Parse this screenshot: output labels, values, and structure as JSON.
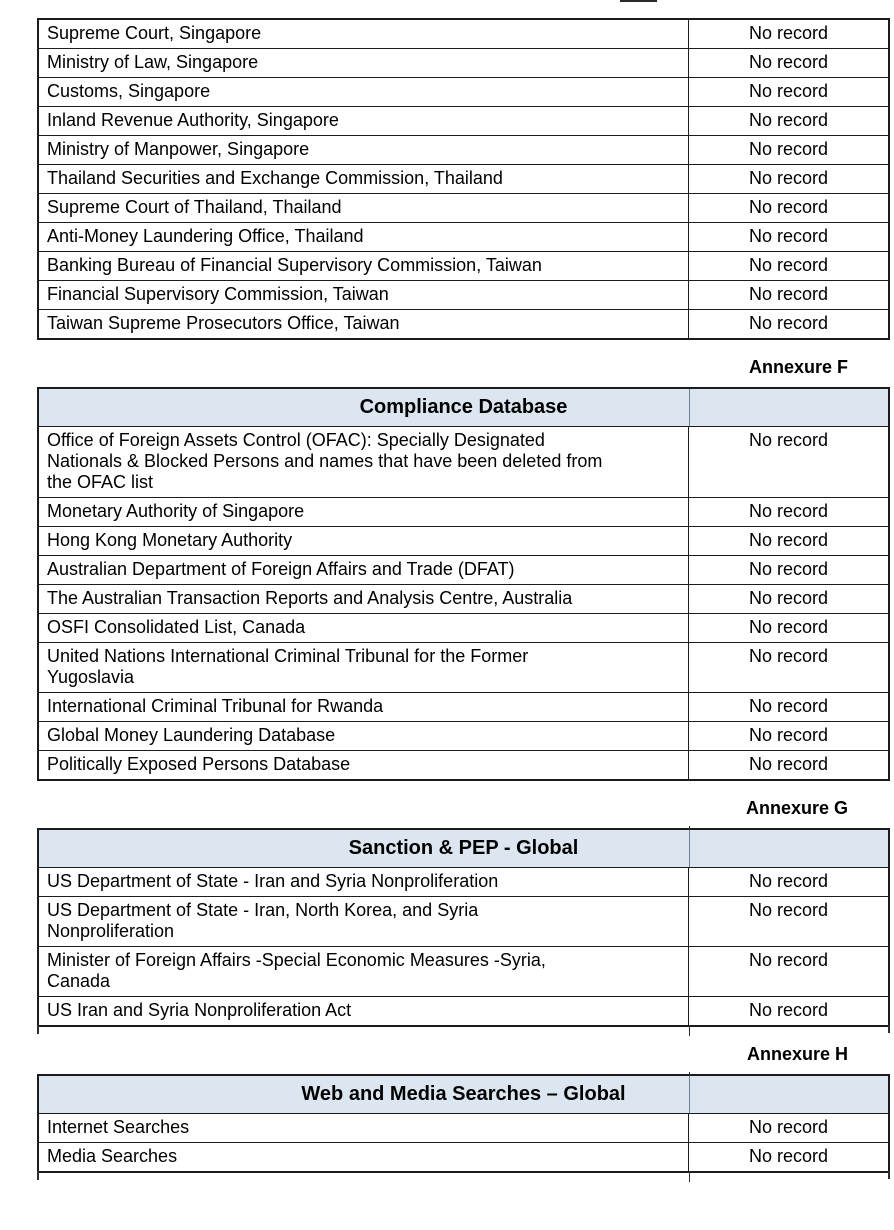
{
  "colors": {
    "header_fill": "#dce6f1",
    "border": "#1c1c1c"
  },
  "tables": [
    {
      "id": "regulatory-sources-apac",
      "annexure": null,
      "header": null,
      "rows": [
        {
          "source": "Supreme Court, Singapore",
          "result": "No record"
        },
        {
          "source": "Ministry of Law, Singapore",
          "result": "No record"
        },
        {
          "source": "Customs, Singapore",
          "result": "No record"
        },
        {
          "source": "Inland Revenue Authority, Singapore",
          "result": "No record"
        },
        {
          "source": "Ministry of Manpower, Singapore",
          "result": "No record"
        },
        {
          "source": "Thailand Securities and Exchange Commission, Thailand",
          "result": "No record"
        },
        {
          "source": "Supreme Court of Thailand, Thailand",
          "result": "No record"
        },
        {
          "source": "Anti-Money Laundering Office, Thailand",
          "result": "No record"
        },
        {
          "source": "Banking Bureau of Financial Supervisory Commission, Taiwan",
          "result": "No record"
        },
        {
          "source": "Financial Supervisory Commission, Taiwan",
          "result": "No record"
        },
        {
          "source": "Taiwan Supreme Prosecutors Office, Taiwan",
          "result": "No record"
        }
      ]
    },
    {
      "id": "compliance-database",
      "annexure": "Annexure F",
      "header": "Compliance Database",
      "rows": [
        {
          "source": "Office of Foreign Assets Control (OFAC): Specially Designated\nNationals & Blocked Persons and names that have been deleted from\nthe OFAC list",
          "result": "No record"
        },
        {
          "source": "Monetary Authority of Singapore",
          "result": "No record"
        },
        {
          "source": "Hong Kong Monetary Authority",
          "result": "No record"
        },
        {
          "source": "Australian Department of Foreign Affairs and Trade (DFAT)",
          "result": "No record"
        },
        {
          "source": "The Australian Transaction Reports and Analysis Centre, Australia",
          "result": "No record"
        },
        {
          "source": "OSFI Consolidated List, Canada",
          "result": "No record"
        },
        {
          "source": "United Nations International Criminal Tribunal for the Former\nYugoslavia",
          "result": "No record"
        },
        {
          "source": "International Criminal Tribunal for Rwanda",
          "result": "No record"
        },
        {
          "source": "Global Money Laundering Database",
          "result": "No record"
        },
        {
          "source": "Politically Exposed Persons Database",
          "result": "No record"
        }
      ]
    },
    {
      "id": "sanction-pep-global",
      "annexure": "Annexure G",
      "header": "Sanction & PEP - Global",
      "rows": [
        {
          "source": "US Department of State - Iran and Syria Nonproliferation",
          "result": "No record"
        },
        {
          "source": "US Department of State - Iran, North Korea, and Syria\nNonproliferation",
          "result": "No record"
        },
        {
          "source": "Minister of Foreign Affairs -Special Economic Measures -Syria,\nCanada",
          "result": "No record"
        },
        {
          "source": "US Iran and Syria Nonproliferation Act",
          "result": "No record"
        }
      ]
    },
    {
      "id": "web-media-searches-global",
      "annexure": "Annexure H",
      "header": "Web and Media Searches – Global",
      "rows": [
        {
          "source": "Internet Searches",
          "result": "No record"
        },
        {
          "source": "Media Searches",
          "result": "No record"
        }
      ]
    }
  ]
}
